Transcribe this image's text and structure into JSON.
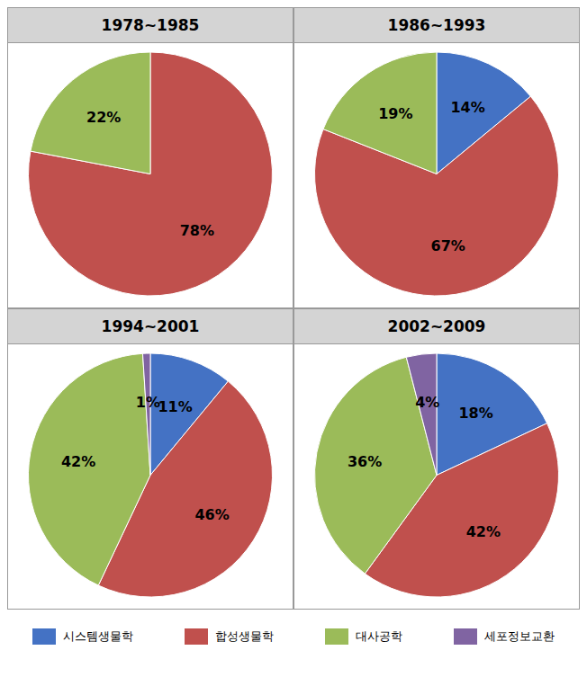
{
  "chart_data": [
    {
      "type": "pie",
      "title": "1978~1985",
      "categories": [
        "합성생물학",
        "대사공학"
      ],
      "values": [
        78,
        22
      ],
      "value_labels": [
        "78%",
        "22%"
      ],
      "colors": [
        "#C0504D",
        "#9BBB59"
      ],
      "data_labels": true
    },
    {
      "type": "pie",
      "title": "1986~1993",
      "categories": [
        "시스템생물학",
        "합성생물학",
        "대사공학"
      ],
      "values": [
        14,
        67,
        19
      ],
      "value_labels": [
        "14%",
        "67%",
        "19%"
      ],
      "colors": [
        "#4472C4",
        "#C0504D",
        "#9BBB59"
      ],
      "data_labels": true
    },
    {
      "type": "pie",
      "title": "1994~2001",
      "categories": [
        "시스템생물학",
        "합성생물학",
        "대사공학",
        "세포정보교환"
      ],
      "values": [
        11,
        46,
        42,
        1
      ],
      "value_labels": [
        "11%",
        "46%",
        "42%",
        "1%"
      ],
      "colors": [
        "#4472C4",
        "#C0504D",
        "#9BBB59",
        "#8064A2"
      ],
      "data_labels": true
    },
    {
      "type": "pie",
      "title": "2002~2009",
      "categories": [
        "시스템생물학",
        "합성생물학",
        "대사공학",
        "세포정보교환"
      ],
      "values": [
        18,
        42,
        36,
        4
      ],
      "value_labels": [
        "18%",
        "42%",
        "36%",
        "4%"
      ],
      "colors": [
        "#4472C4",
        "#C0504D",
        "#9BBB59",
        "#8064A2"
      ],
      "data_labels": true
    }
  ]
}
